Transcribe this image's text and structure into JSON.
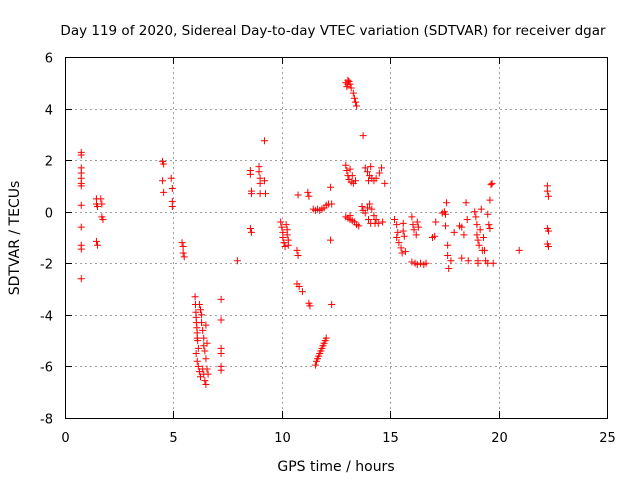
{
  "chart_data": {
    "type": "scatter",
    "title": "Day 119 of 2020, Sidereal Day-to-day VTEC variation (SDTVAR) for receiver dgar",
    "xlabel": "GPS time / hours",
    "ylabel": "SDTVAR / TECUs",
    "xlim": [
      0,
      25
    ],
    "ylim": [
      -8,
      6
    ],
    "xticks": [
      0,
      5,
      10,
      15,
      20,
      25
    ],
    "yticks": [
      -8,
      -6,
      -4,
      -2,
      0,
      2,
      4,
      6
    ],
    "grid": true,
    "marker": "plus",
    "series": [
      {
        "name": "SDTVAR",
        "color": "#ff0000",
        "points": [
          [
            0.75,
            2.3
          ],
          [
            0.75,
            2.2
          ],
          [
            0.75,
            1.7
          ],
          [
            0.75,
            1.5
          ],
          [
            0.75,
            1.3
          ],
          [
            0.75,
            1.1
          ],
          [
            0.75,
            1.0
          ],
          [
            0.75,
            0.25
          ],
          [
            0.75,
            -0.6
          ],
          [
            0.75,
            -1.3
          ],
          [
            0.75,
            -1.45
          ],
          [
            0.75,
            -2.6
          ],
          [
            1.45,
            0.5
          ],
          [
            1.45,
            0.3
          ],
          [
            1.5,
            0.2
          ],
          [
            1.45,
            -1.15
          ],
          [
            1.5,
            -1.3
          ],
          [
            1.65,
            0.5
          ],
          [
            1.7,
            0.3
          ],
          [
            1.7,
            -0.2
          ],
          [
            1.75,
            -0.3
          ],
          [
            4.5,
            1.95
          ],
          [
            4.55,
            1.85
          ],
          [
            4.5,
            1.2
          ],
          [
            4.55,
            0.75
          ],
          [
            4.9,
            1.3
          ],
          [
            4.95,
            0.9
          ],
          [
            4.95,
            0.4
          ],
          [
            4.95,
            0.2
          ],
          [
            5.4,
            -1.2
          ],
          [
            5.45,
            -1.35
          ],
          [
            5.45,
            -1.6
          ],
          [
            5.5,
            -1.75
          ],
          [
            6.0,
            -3.3
          ],
          [
            6.02,
            -3.6
          ],
          [
            6.04,
            -3.9
          ],
          [
            6.05,
            -4.1
          ],
          [
            6.06,
            -4.3
          ],
          [
            6.08,
            -4.5
          ],
          [
            6.1,
            -4.7
          ],
          [
            6.1,
            -4.9
          ],
          [
            6.12,
            -5.0
          ],
          [
            6.15,
            -5.3
          ],
          [
            6.05,
            -5.5
          ],
          [
            6.1,
            -5.8
          ],
          [
            6.15,
            -6.0
          ],
          [
            6.2,
            -6.2
          ],
          [
            6.25,
            -6.4
          ],
          [
            6.2,
            -3.6
          ],
          [
            6.25,
            -3.8
          ],
          [
            6.3,
            -4.0
          ],
          [
            6.3,
            -4.3
          ],
          [
            6.35,
            -4.6
          ],
          [
            6.4,
            -4.9
          ],
          [
            6.4,
            -5.2
          ],
          [
            6.45,
            -5.4
          ],
          [
            6.5,
            -5.7
          ],
          [
            6.35,
            -6.1
          ],
          [
            6.4,
            -6.3
          ],
          [
            6.45,
            -6.55
          ],
          [
            6.5,
            -6.7
          ],
          [
            6.5,
            -4.4
          ],
          [
            6.55,
            -5.1
          ],
          [
            6.55,
            -6.1
          ],
          [
            6.6,
            -6.3
          ],
          [
            7.2,
            -3.4
          ],
          [
            7.2,
            -4.2
          ],
          [
            7.2,
            -5.3
          ],
          [
            7.2,
            -5.5
          ],
          [
            7.2,
            -6.0
          ],
          [
            7.2,
            -6.15
          ],
          [
            7.95,
            -1.9
          ],
          [
            8.55,
            1.6
          ],
          [
            8.55,
            1.45
          ],
          [
            8.6,
            0.8
          ],
          [
            8.6,
            0.7
          ],
          [
            8.55,
            -0.65
          ],
          [
            8.6,
            -0.8
          ],
          [
            8.95,
            1.75
          ],
          [
            8.95,
            1.55
          ],
          [
            9.0,
            1.3
          ],
          [
            9.0,
            1.1
          ],
          [
            9.0,
            0.7
          ],
          [
            9.2,
            2.75
          ],
          [
            9.2,
            1.2
          ],
          [
            9.25,
            0.7
          ],
          [
            9.95,
            -0.4
          ],
          [
            10.0,
            -0.6
          ],
          [
            10.05,
            -0.8
          ],
          [
            10.05,
            -1.0
          ],
          [
            10.1,
            -1.2
          ],
          [
            10.15,
            -1.35
          ],
          [
            10.2,
            -0.5
          ],
          [
            10.25,
            -0.7
          ],
          [
            10.25,
            -0.9
          ],
          [
            10.3,
            -1.1
          ],
          [
            10.3,
            -1.3
          ],
          [
            10.75,
            0.65
          ],
          [
            10.7,
            -1.5
          ],
          [
            10.75,
            -1.7
          ],
          [
            10.7,
            -2.8
          ],
          [
            10.8,
            -2.9
          ],
          [
            10.95,
            -3.1
          ],
          [
            11.2,
            0.75
          ],
          [
            11.25,
            0.6
          ],
          [
            11.25,
            -3.55
          ],
          [
            11.3,
            -3.65
          ],
          [
            11.45,
            0.1
          ],
          [
            11.55,
            0.05
          ],
          [
            11.65,
            0.1
          ],
          [
            11.75,
            0.05
          ],
          [
            11.85,
            0.1
          ],
          [
            11.95,
            0.15
          ],
          [
            12.05,
            0.25
          ],
          [
            12.15,
            0.3
          ],
          [
            11.55,
            -5.95
          ],
          [
            11.6,
            -5.8
          ],
          [
            11.65,
            -5.7
          ],
          [
            11.7,
            -5.6
          ],
          [
            11.75,
            -5.5
          ],
          [
            11.8,
            -5.4
          ],
          [
            11.85,
            -5.3
          ],
          [
            11.9,
            -5.2
          ],
          [
            11.95,
            -5.1
          ],
          [
            12.0,
            -5.0
          ],
          [
            12.05,
            -4.9
          ],
          [
            12.25,
            0.95
          ],
          [
            12.3,
            0.3
          ],
          [
            12.25,
            -1.1
          ],
          [
            12.3,
            -3.6
          ],
          [
            12.95,
            5.0
          ],
          [
            13.05,
            5.1
          ],
          [
            13.1,
            5.05
          ],
          [
            13.15,
            4.95
          ],
          [
            13.2,
            4.8
          ],
          [
            13.3,
            4.6
          ],
          [
            13.35,
            4.4
          ],
          [
            13.4,
            4.25
          ],
          [
            13.45,
            4.1
          ],
          [
            13.0,
            4.85
          ],
          [
            13.05,
            4.95
          ],
          [
            12.95,
            1.8
          ],
          [
            13.0,
            1.6
          ],
          [
            13.05,
            1.4
          ],
          [
            13.1,
            1.25
          ],
          [
            13.2,
            1.15
          ],
          [
            13.3,
            1.1
          ],
          [
            13.4,
            1.2
          ],
          [
            13.15,
            1.65
          ],
          [
            13.25,
            1.4
          ],
          [
            12.95,
            -0.2
          ],
          [
            13.05,
            -0.25
          ],
          [
            13.15,
            -0.3
          ],
          [
            13.25,
            -0.35
          ],
          [
            13.35,
            -0.4
          ],
          [
            13.45,
            -0.5
          ],
          [
            13.55,
            -0.55
          ],
          [
            13.15,
            -0.15
          ],
          [
            13.75,
            2.95
          ],
          [
            13.75,
            0.05
          ],
          [
            13.7,
            0.2
          ],
          [
            13.85,
            1.7
          ],
          [
            13.95,
            1.55
          ],
          [
            14.05,
            1.4
          ],
          [
            14.15,
            1.3
          ],
          [
            14.25,
            1.2
          ],
          [
            14.35,
            1.3
          ],
          [
            14.0,
            1.2
          ],
          [
            14.1,
            1.75
          ],
          [
            13.85,
            -0.05
          ],
          [
            13.95,
            0.15
          ],
          [
            14.05,
            0.3
          ],
          [
            14.15,
            0.1
          ],
          [
            14.25,
            -0.15
          ],
          [
            14.35,
            -0.3
          ],
          [
            14.0,
            -0.3
          ],
          [
            14.1,
            -0.45
          ],
          [
            14.5,
            1.5
          ],
          [
            14.6,
            1.7
          ],
          [
            14.75,
            1.1
          ],
          [
            14.3,
            -0.45
          ],
          [
            14.45,
            -0.45
          ],
          [
            14.65,
            -0.4
          ],
          [
            15.2,
            -0.3
          ],
          [
            15.3,
            -0.5
          ],
          [
            15.35,
            -0.8
          ],
          [
            15.3,
            -1.0
          ],
          [
            15.4,
            -1.2
          ],
          [
            15.5,
            -1.4
          ],
          [
            15.55,
            -1.6
          ],
          [
            15.6,
            -0.45
          ],
          [
            15.6,
            -0.75
          ],
          [
            15.65,
            -0.95
          ],
          [
            15.7,
            -1.55
          ],
          [
            16.0,
            -0.2
          ],
          [
            16.05,
            -0.5
          ],
          [
            16.1,
            -0.7
          ],
          [
            16.2,
            -0.9
          ],
          [
            16.25,
            -0.4
          ],
          [
            16.3,
            -0.6
          ],
          [
            16.0,
            -1.95
          ],
          [
            16.15,
            -2.0
          ],
          [
            16.25,
            -2.05
          ],
          [
            16.4,
            -2.0
          ],
          [
            16.55,
            -2.05
          ],
          [
            16.65,
            -2.0
          ],
          [
            16.95,
            -1.0
          ],
          [
            17.05,
            -0.95
          ],
          [
            17.1,
            -0.4
          ],
          [
            17.4,
            -0.05
          ],
          [
            17.5,
            0.0
          ],
          [
            17.55,
            -0.1
          ],
          [
            17.55,
            -0.55
          ],
          [
            17.6,
            0.35
          ],
          [
            17.65,
            -1.7
          ],
          [
            17.7,
            -2.2
          ],
          [
            17.65,
            -1.3
          ],
          [
            17.8,
            -1.9
          ],
          [
            17.95,
            -0.8
          ],
          [
            18.2,
            -0.55
          ],
          [
            18.3,
            -0.6
          ],
          [
            18.3,
            -1.8
          ],
          [
            18.4,
            -0.9
          ],
          [
            18.5,
            0.35
          ],
          [
            18.55,
            -0.3
          ],
          [
            18.6,
            -1.9
          ],
          [
            18.9,
            0.0
          ],
          [
            18.95,
            -0.2
          ],
          [
            19.0,
            -0.5
          ],
          [
            19.0,
            -0.9
          ],
          [
            19.05,
            -1.1
          ],
          [
            19.1,
            -1.3
          ],
          [
            19.05,
            -1.9
          ],
          [
            19.05,
            -2.0
          ],
          [
            19.15,
            -0.7
          ],
          [
            19.2,
            0.1
          ],
          [
            19.25,
            -1.5
          ],
          [
            19.3,
            -1.0
          ],
          [
            19.35,
            -1.5
          ],
          [
            19.4,
            -1.9
          ],
          [
            19.5,
            -2.0
          ],
          [
            19.5,
            -0.1
          ],
          [
            19.55,
            -0.5
          ],
          [
            19.6,
            0.45
          ],
          [
            19.6,
            -0.65
          ],
          [
            19.65,
            1.05
          ],
          [
            19.7,
            1.1
          ],
          [
            19.75,
            -2.0
          ],
          [
            20.95,
            -1.5
          ],
          [
            22.25,
            1.0
          ],
          [
            22.25,
            0.8
          ],
          [
            22.3,
            0.6
          ],
          [
            22.25,
            -0.65
          ],
          [
            22.3,
            -0.75
          ],
          [
            22.25,
            -1.25
          ],
          [
            22.3,
            -1.35
          ]
        ]
      }
    ]
  }
}
